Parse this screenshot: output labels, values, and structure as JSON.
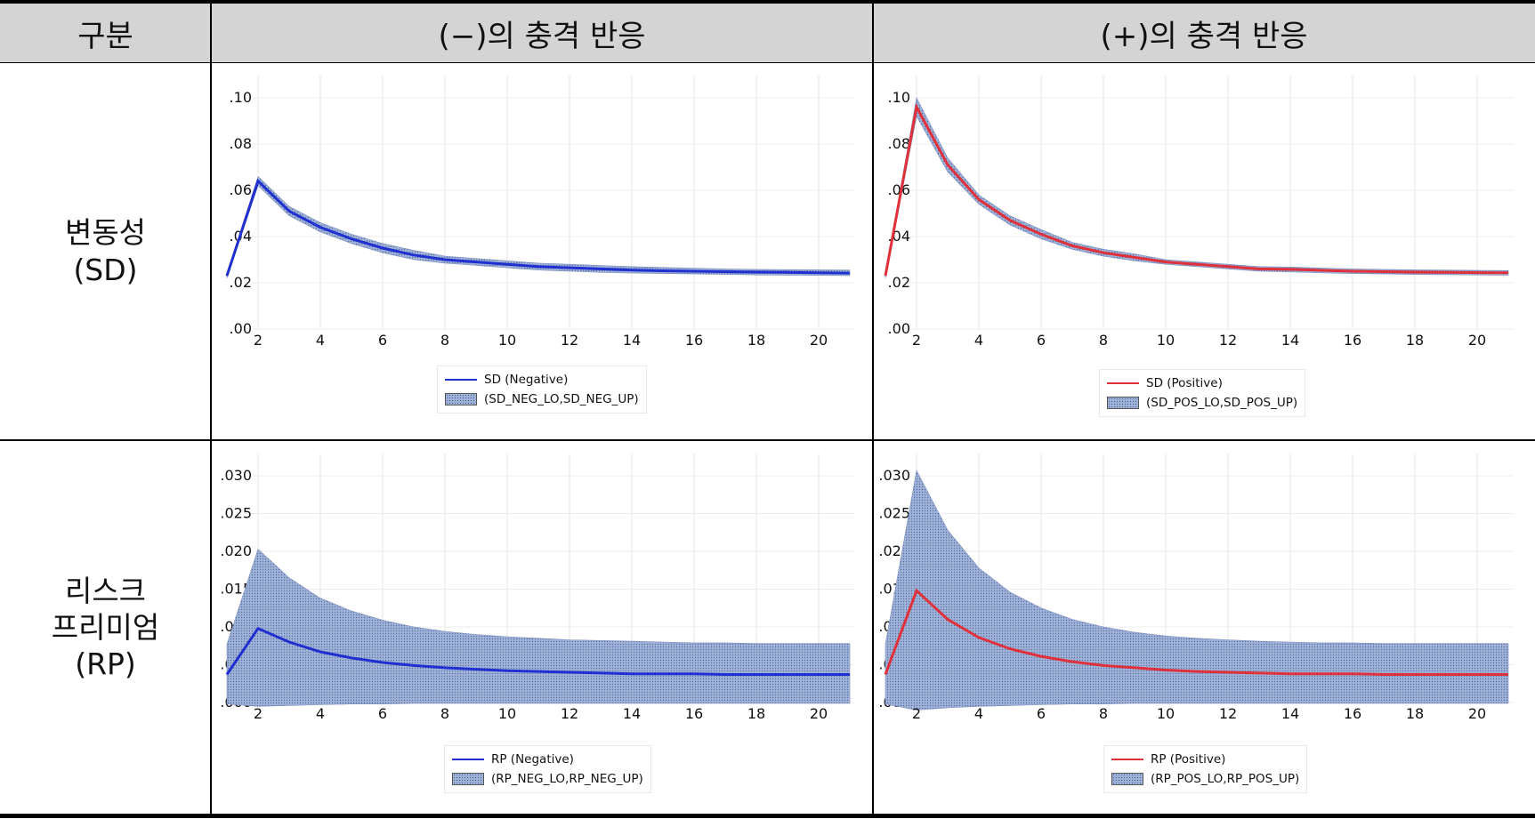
{
  "table": {
    "header": {
      "col0": "구분",
      "col1": "(−)의 충격 반응",
      "col2": "(+)의 충격 반응"
    },
    "rows": [
      {
        "label_line1": "변동성",
        "label_line2": "(SD)",
        "label_line3": ""
      },
      {
        "label_line1": "리스크",
        "label_line2": "프리미엄",
        "label_line3": "(RP)"
      }
    ]
  },
  "colors": {
    "negative_line": "#1f2fd0",
    "positive_line": "#e0303a",
    "band_fill": "#9fb3d8",
    "header_bg": "#d4d4d4"
  },
  "chart_data": [
    {
      "type": "line",
      "panel": "SD-negative",
      "x": [
        1,
        2,
        3,
        4,
        5,
        6,
        7,
        8,
        9,
        10,
        11,
        12,
        13,
        14,
        15,
        16,
        17,
        18,
        19,
        20,
        21
      ],
      "series": [
        {
          "name": "SD (Negative)",
          "values": [
            0.023,
            0.064,
            0.051,
            0.044,
            0.039,
            0.035,
            0.032,
            0.03,
            0.029,
            0.028,
            0.027,
            0.0265,
            0.026,
            0.0255,
            0.0252,
            0.025,
            0.0248,
            0.0246,
            0.0245,
            0.0243,
            0.0242
          ]
        },
        {
          "name": "(SD_NEG_LO,SD_NEG_UP)",
          "band": true,
          "lower": [
            0.022,
            0.062,
            0.049,
            0.042,
            0.037,
            0.033,
            0.03,
            0.0285,
            0.0275,
            0.0265,
            0.0255,
            0.025,
            0.0245,
            0.0242,
            0.024,
            0.0238,
            0.0236,
            0.0234,
            0.0233,
            0.0232,
            0.0231
          ],
          "upper": [
            0.024,
            0.066,
            0.053,
            0.046,
            0.041,
            0.037,
            0.034,
            0.0315,
            0.0305,
            0.0295,
            0.0285,
            0.028,
            0.0275,
            0.027,
            0.0266,
            0.0263,
            0.026,
            0.0258,
            0.0257,
            0.0256,
            0.0255
          ]
        }
      ],
      "yticks": [
        ".00",
        ".02",
        ".04",
        ".06",
        ".08",
        ".10"
      ],
      "ylim": [
        0,
        0.1
      ],
      "xticks": [
        "2",
        "4",
        "6",
        "8",
        "10",
        "12",
        "14",
        "16",
        "18",
        "20"
      ],
      "xlim": [
        1,
        21
      ],
      "legend": "bottom-center",
      "grid": true
    },
    {
      "type": "line",
      "panel": "SD-positive",
      "x": [
        1,
        2,
        3,
        4,
        5,
        6,
        7,
        8,
        9,
        10,
        11,
        12,
        13,
        14,
        15,
        16,
        17,
        18,
        19,
        20,
        21
      ],
      "series": [
        {
          "name": "SD (Positive)",
          "values": [
            0.023,
            0.096,
            0.071,
            0.056,
            0.047,
            0.041,
            0.036,
            0.033,
            0.031,
            0.029,
            0.028,
            0.027,
            0.026,
            0.0258,
            0.0254,
            0.025,
            0.0248,
            0.0246,
            0.0245,
            0.0244,
            0.0243
          ]
        },
        {
          "name": "(SD_POS_LO,SD_POS_UP)",
          "band": true,
          "lower": [
            0.022,
            0.092,
            0.068,
            0.054,
            0.045,
            0.039,
            0.0345,
            0.0315,
            0.0295,
            0.028,
            0.027,
            0.026,
            0.025,
            0.0247,
            0.0243,
            0.024,
            0.0238,
            0.0236,
            0.0235,
            0.0234,
            0.0233
          ],
          "upper": [
            0.024,
            0.1,
            0.074,
            0.058,
            0.049,
            0.043,
            0.0375,
            0.0345,
            0.0325,
            0.03,
            0.029,
            0.028,
            0.027,
            0.0268,
            0.0264,
            0.026,
            0.0258,
            0.0256,
            0.0255,
            0.0254,
            0.0253
          ]
        }
      ],
      "yticks": [
        ".00",
        ".02",
        ".04",
        ".06",
        ".08",
        ".10"
      ],
      "ylim": [
        0,
        0.1
      ],
      "xticks": [
        "2",
        "4",
        "6",
        "8",
        "10",
        "12",
        "14",
        "16",
        "18",
        "20"
      ],
      "xlim": [
        1,
        21
      ],
      "legend": "bottom-center",
      "grid": true
    },
    {
      "type": "line",
      "panel": "RP-negative",
      "x": [
        1,
        2,
        3,
        4,
        5,
        6,
        7,
        8,
        9,
        10,
        11,
        12,
        13,
        14,
        15,
        16,
        17,
        18,
        19,
        20,
        21
      ],
      "series": [
        {
          "name": "RP (Negative)",
          "values": [
            0.0037,
            0.0098,
            0.008,
            0.0067,
            0.0059,
            0.0053,
            0.0049,
            0.0046,
            0.0044,
            0.0042,
            0.0041,
            0.004,
            0.0039,
            0.0038,
            0.0038,
            0.0038,
            0.0037,
            0.0037,
            0.0037,
            0.0037,
            0.0037
          ]
        },
        {
          "name": "(RP_NEG_LO,RP_NEG_UP)",
          "band": true,
          "lower": [
            -0.0002,
            -0.0005,
            -0.0004,
            -0.0003,
            -0.0002,
            -0.0002,
            -0.0001,
            -0.0001,
            -0.0001,
            -0.0001,
            -0.0001,
            -0.0001,
            -0.0001,
            -0.0001,
            -0.0001,
            -0.0001,
            -0.0001,
            -0.0001,
            -0.0001,
            -0.0001,
            -0.0001
          ],
          "upper": [
            0.0077,
            0.0203,
            0.0165,
            0.0138,
            0.0121,
            0.0109,
            0.01,
            0.0094,
            0.009,
            0.0087,
            0.0085,
            0.0083,
            0.0082,
            0.0081,
            0.008,
            0.0079,
            0.0079,
            0.0078,
            0.0078,
            0.0078,
            0.0078
          ]
        }
      ],
      "yticks": [
        ".000",
        ".005",
        ".010",
        ".015",
        ".020",
        ".025",
        ".030"
      ],
      "ylim": [
        0,
        0.03
      ],
      "xticks": [
        "2",
        "4",
        "6",
        "8",
        "10",
        "12",
        "14",
        "16",
        "18",
        "20"
      ],
      "xlim": [
        1,
        21
      ],
      "legend": "bottom-center",
      "grid": true
    },
    {
      "type": "line",
      "panel": "RP-positive",
      "x": [
        1,
        2,
        3,
        4,
        5,
        6,
        7,
        8,
        9,
        10,
        11,
        12,
        13,
        14,
        15,
        16,
        17,
        18,
        19,
        20,
        21
      ],
      "series": [
        {
          "name": "RP (Positive)",
          "values": [
            0.0037,
            0.0148,
            0.011,
            0.0086,
            0.0071,
            0.0061,
            0.0054,
            0.0049,
            0.0046,
            0.0043,
            0.0041,
            0.004,
            0.0039,
            0.0038,
            0.0038,
            0.0038,
            0.0037,
            0.0037,
            0.0037,
            0.0037,
            0.0037
          ]
        },
        {
          "name": "(RP_POS_LO,RP_POS_UP)",
          "band": true,
          "lower": [
            -0.0002,
            -0.001,
            -0.0007,
            -0.0005,
            -0.0004,
            -0.0003,
            -0.0002,
            -0.0002,
            -0.0001,
            -0.0001,
            -0.0001,
            -0.0001,
            -0.0001,
            -0.0001,
            -0.0001,
            -0.0001,
            -0.0001,
            -0.0001,
            -0.0001,
            -0.0001,
            -0.0001
          ],
          "upper": [
            0.0077,
            0.0307,
            0.0228,
            0.0178,
            0.0146,
            0.0125,
            0.011,
            0.01,
            0.0093,
            0.0088,
            0.0085,
            0.0083,
            0.0081,
            0.008,
            0.0079,
            0.0079,
            0.0078,
            0.0078,
            0.0078,
            0.0078,
            0.0078
          ]
        }
      ],
      "yticks": [
        ".000",
        ".005",
        ".010",
        ".015",
        ".020",
        ".025",
        ".030"
      ],
      "ylim": [
        0,
        0.03
      ],
      "xticks": [
        "2",
        "4",
        "6",
        "8",
        "10",
        "12",
        "14",
        "16",
        "18",
        "20"
      ],
      "xlim": [
        1,
        21
      ],
      "legend": "bottom-center",
      "grid": true
    }
  ]
}
